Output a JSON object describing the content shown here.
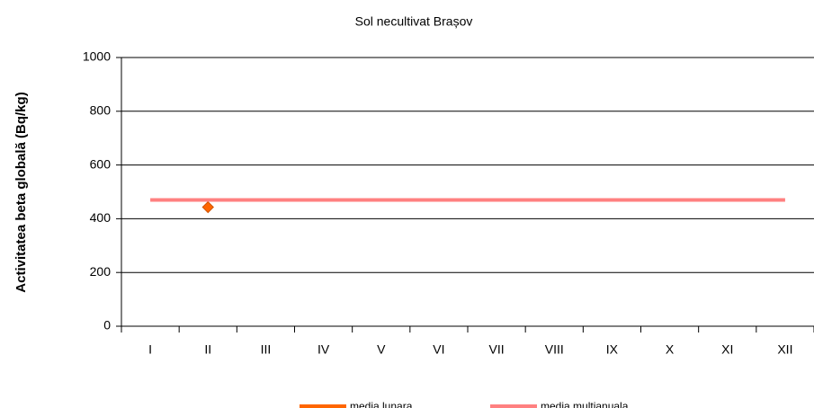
{
  "chart_data": {
    "type": "line",
    "title": "Sol necultivat Brașov",
    "y_label": "Activitatea beta globală (Bq/kg)",
    "categories": [
      "I",
      "II",
      "III",
      "IV",
      "V",
      "VI",
      "VII",
      "VIII",
      "IX",
      "X",
      "XI",
      "XII"
    ],
    "series": [
      {
        "name": "media lunara",
        "color": "#ff6600",
        "values": [
          null,
          443,
          null,
          null,
          null,
          null,
          null,
          null,
          null,
          null,
          null,
          null
        ]
      },
      {
        "name": "media multianuala",
        "color": "#ff8080",
        "values": [
          470,
          470,
          470,
          470,
          470,
          470,
          470,
          470,
          470,
          470,
          470,
          470
        ]
      }
    ],
    "ylim": [
      0,
      1000
    ],
    "yticks": [
      0,
      200,
      400,
      600,
      800,
      1000
    ],
    "grid": true,
    "legend": "bottom"
  }
}
